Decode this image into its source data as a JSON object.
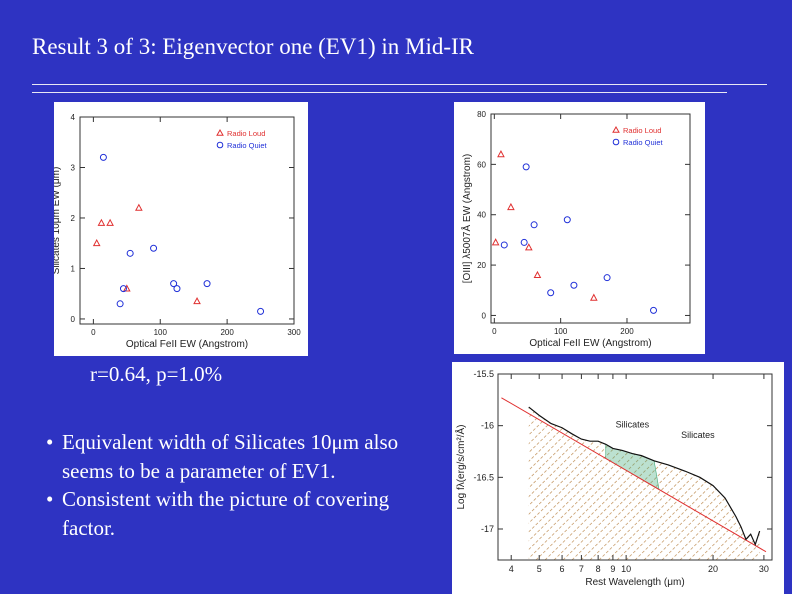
{
  "slide": {
    "title": "Result 3 of 3: Eigenvector one (EV1) in Mid-IR",
    "stat": "r=0.64,  p=1.0%",
    "bullets": [
      "Equivalent width of Silicates 10μm also seems to be a parameter of EV1.",
      "Consistent with the picture of covering factor."
    ],
    "bullet_glyph": "•"
  },
  "colors": {
    "background": "#2e33c2",
    "radio_loud": "#e03030",
    "radio_quiet": "#2030d8",
    "model_line": "#e03030",
    "hatch": "#c9a070",
    "silicate_hatch": "#40a878"
  },
  "chart_data": [
    {
      "type": "scatter",
      "xlabel": "Optical FeII EW (Angstrom)",
      "ylabel": "Silicates 10μm EW (μm)",
      "xlim": [
        -20,
        300
      ],
      "ylim": [
        -0.1,
        4
      ],
      "xticks": [
        0,
        100,
        200,
        300
      ],
      "yticks": [
        0,
        1,
        2,
        3,
        4
      ],
      "legend": {
        "position": "top-right"
      },
      "series": [
        {
          "name": "Radio Loud",
          "marker": "triangle",
          "points": [
            [
              5,
              1.5
            ],
            [
              12,
              1.9
            ],
            [
              25,
              1.9
            ],
            [
              50,
              0.6
            ],
            [
              68,
              2.2
            ],
            [
              155,
              0.35
            ]
          ]
        },
        {
          "name": "Radio Quiet",
          "marker": "circle",
          "points": [
            [
              15,
              3.2
            ],
            [
              40,
              0.3
            ],
            [
              45,
              0.6
            ],
            [
              55,
              1.3
            ],
            [
              90,
              1.4
            ],
            [
              120,
              0.7
            ],
            [
              125,
              0.6
            ],
            [
              170,
              0.7
            ],
            [
              250,
              0.15
            ]
          ]
        }
      ]
    },
    {
      "type": "scatter",
      "xlabel": "Optical FeII EW (Angstrom)",
      "ylabel": "[OIII] λ5007Å EW (Angstrom)",
      "xlim": [
        -5,
        295
      ],
      "ylim": [
        -3,
        80
      ],
      "xticks": [
        0,
        100,
        200
      ],
      "yticks": [
        0,
        20,
        40,
        60,
        80
      ],
      "legend": {
        "position": "top-right"
      },
      "series": [
        {
          "name": "Radio Loud",
          "marker": "triangle",
          "points": [
            [
              2,
              29
            ],
            [
              10,
              64
            ],
            [
              25,
              43
            ],
            [
              52,
              27
            ],
            [
              65,
              16
            ],
            [
              150,
              7
            ]
          ]
        },
        {
          "name": "Radio Quiet",
          "marker": "circle",
          "points": [
            [
              15,
              28
            ],
            [
              45,
              29
            ],
            [
              48,
              59
            ],
            [
              60,
              36
            ],
            [
              85,
              9
            ],
            [
              110,
              38
            ],
            [
              120,
              12
            ],
            [
              170,
              15
            ],
            [
              240,
              2
            ]
          ]
        }
      ]
    },
    {
      "type": "line",
      "xlabel": "Rest Wavelength (μm)",
      "ylabel": "Log fλ(erg/s/cm²/Å)",
      "xscale": "log",
      "xlim": [
        3.6,
        32
      ],
      "ylim": [
        -17.3,
        -15.5
      ],
      "xticks": [
        4,
        5,
        6,
        7,
        8,
        9,
        10,
        20,
        30
      ],
      "yticks": [
        -17,
        -16.5,
        -16,
        -15.5
      ],
      "annotations": [
        "Silicates",
        "Silicates"
      ],
      "series": [
        {
          "role": "spectrum",
          "points": [
            [
              4.6,
              -15.82
            ],
            [
              5.0,
              -15.9
            ],
            [
              5.5,
              -15.98
            ],
            [
              6.0,
              -16.02
            ],
            [
              6.5,
              -16.08
            ],
            [
              7.0,
              -16.13
            ],
            [
              7.5,
              -16.15
            ],
            [
              8.0,
              -16.15
            ],
            [
              8.5,
              -16.18
            ],
            [
              9.0,
              -16.22
            ],
            [
              9.7,
              -16.24
            ],
            [
              10.5,
              -16.27
            ],
            [
              11.3,
              -16.29
            ],
            [
              12.5,
              -16.34
            ],
            [
              14,
              -16.38
            ],
            [
              16,
              -16.44
            ],
            [
              18,
              -16.5
            ],
            [
              20,
              -16.58
            ],
            [
              22,
              -16.7
            ],
            [
              24,
              -16.88
            ],
            [
              25,
              -16.98
            ],
            [
              26,
              -17.1
            ],
            [
              27,
              -17.05
            ],
            [
              28,
              -17.15
            ],
            [
              29,
              -17.02
            ]
          ]
        },
        {
          "role": "model",
          "points": [
            [
              3.7,
              -15.73
            ],
            [
              30.5,
              -17.22
            ]
          ]
        }
      ]
    }
  ]
}
